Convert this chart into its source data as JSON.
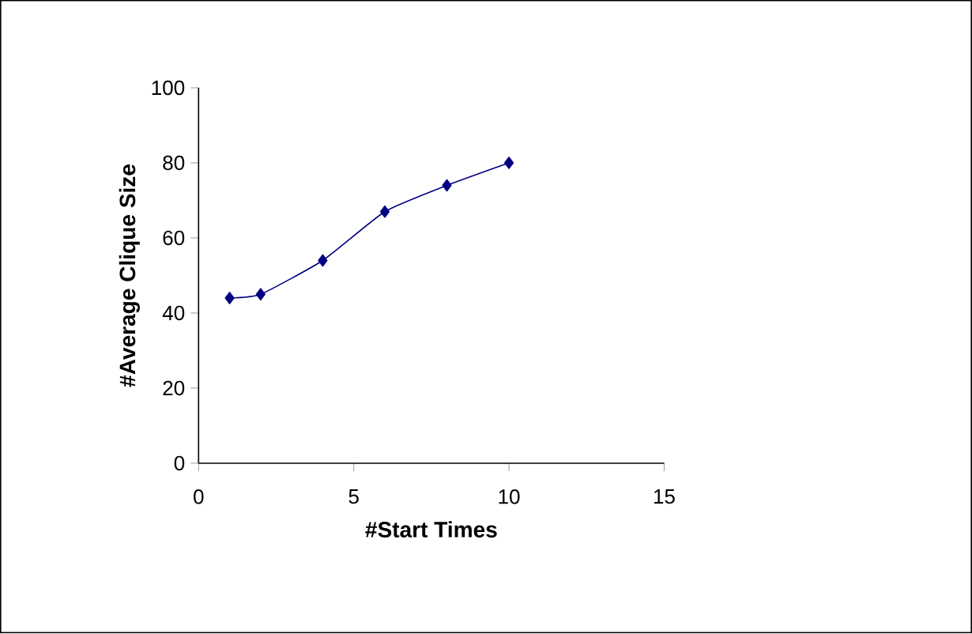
{
  "chart_data": {
    "type": "line",
    "xlabel": "#Start Times",
    "ylabel": "#Average Clique Size",
    "x": [
      1,
      2,
      4,
      6,
      8,
      10
    ],
    "series": [
      {
        "color": "#000080",
        "values": [
          44,
          45,
          54,
          67,
          74,
          80
        ]
      }
    ],
    "xlim": [
      0,
      15
    ],
    "xticks": [
      0,
      5,
      10,
      15
    ],
    "ylim": [
      0,
      100
    ],
    "yticks": [
      0,
      20,
      40,
      60,
      80,
      100
    ],
    "marker": "diamond",
    "line_style": "solid"
  }
}
